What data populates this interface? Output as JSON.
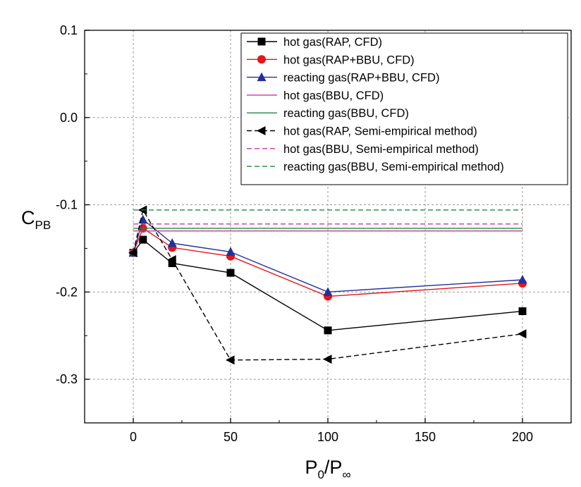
{
  "chart_data": {
    "type": "line",
    "xlabel": {
      "main": "P",
      "sub": "0",
      "sep": "/P",
      "sub2": "∞"
    },
    "ylabel": {
      "main": "C",
      "sub": "PB"
    },
    "xlim": [
      -25,
      225
    ],
    "ylim": [
      -0.35,
      0.1
    ],
    "xticks": [
      0,
      50,
      100,
      150,
      200
    ],
    "xtick_labels": [
      "0",
      "50",
      "100",
      "150",
      "200"
    ],
    "yticks": [
      -0.3,
      -0.2,
      -0.1,
      0.0,
      0.1
    ],
    "ytick_labels": [
      "-0.3",
      "-0.2",
      "-0.1",
      "0.0",
      "0.1"
    ],
    "grid": true,
    "legend_position": "top-right",
    "series": [
      {
        "name": "hot gas(RAP, CFD)",
        "color": "#000000",
        "dash": "solid",
        "marker": "square",
        "x": [
          0,
          5,
          20,
          50,
          100,
          200
        ],
        "y": [
          -0.155,
          -0.14,
          -0.167,
          -0.178,
          -0.244,
          -0.222
        ]
      },
      {
        "name": "hot gas(RAP+BBU, CFD)",
        "color": "#e8141a",
        "dash": "solid",
        "marker": "circle",
        "x": [
          0,
          5,
          20,
          50,
          100,
          200
        ],
        "y": [
          -0.155,
          -0.127,
          -0.149,
          -0.159,
          -0.205,
          -0.19
        ]
      },
      {
        "name": "reacting gas(RAP+BBU, CFD)",
        "color": "#23309a",
        "dash": "solid",
        "marker": "triangle",
        "x": [
          0,
          5,
          20,
          50,
          100,
          200
        ],
        "y": [
          -0.155,
          -0.117,
          -0.144,
          -0.154,
          -0.2,
          -0.186
        ]
      },
      {
        "name": "hot gas(BBU, CFD)",
        "color": "#c8379b",
        "dash": "solid",
        "marker": "none",
        "x": [
          0,
          200
        ],
        "y": [
          -0.13,
          -0.13
        ]
      },
      {
        "name": "reacting gas(BBU, CFD)",
        "color": "#1e8a3c",
        "dash": "solid",
        "marker": "none",
        "x": [
          0,
          200
        ],
        "y": [
          -0.127,
          -0.127
        ]
      },
      {
        "name": "hot gas(RAP, Semi-empirical method)",
        "color": "#000000",
        "dash": "dashed",
        "marker": "triangle-left",
        "x": [
          0,
          5,
          20,
          50,
          100,
          200
        ],
        "y": [
          -0.155,
          -0.106,
          -0.163,
          -0.278,
          -0.277,
          -0.248
        ]
      },
      {
        "name": "hot gas(BBU, Semi-empirical method)",
        "color": "#c8379b",
        "dash": "dashed",
        "marker": "none",
        "x": [
          0,
          200
        ],
        "y": [
          -0.122,
          -0.122
        ]
      },
      {
        "name": "reacting gas(BBU, Semi-empirical method)",
        "color": "#1e8a3c",
        "dash": "dashed",
        "marker": "none",
        "x": [
          0,
          200
        ],
        "y": [
          -0.106,
          -0.106
        ]
      }
    ]
  }
}
